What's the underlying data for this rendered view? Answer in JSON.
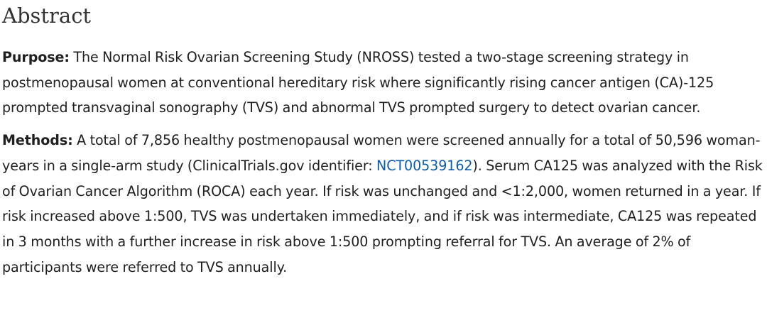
{
  "abstract": {
    "heading": "Abstract",
    "purpose": {
      "label": "Purpose:",
      "text": " The Normal Risk Ovarian Screening Study (NROSS) tested a two-stage screening strategy in postmenopausal women at conventional hereditary risk where significantly rising cancer antigen (CA)-125 prompted transvaginal sonography (TVS) and abnormal TVS prompted surgery to detect ovarian cancer."
    },
    "methods": {
      "label": "Methods:",
      "text_before_link": " A total of 7,856 healthy postmenopausal women were screened annually for a total of 50,596 woman-years in a single-arm study (ClinicalTrials.gov identifier: ",
      "link_text": "NCT00539162",
      "text_after_link": "). Serum CA125 was analyzed with the Risk of Ovarian Cancer Algorithm (ROCA) each year. If risk was unchanged and <1:2,000, women returned in a year. If risk increased above 1:500, TVS was undertaken immediately, and if risk was intermediate, CA125 was repeated in 3 months with a further increase in risk above 1:500 prompting referral for TVS. An average of 2% of participants were referred to TVS annually."
    }
  },
  "colors": {
    "text": "#1f1f1f",
    "heading": "#333333",
    "link": "#0b5cad"
  }
}
